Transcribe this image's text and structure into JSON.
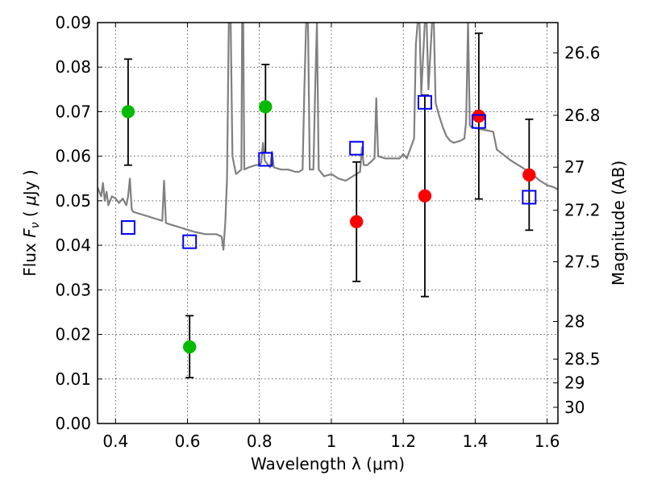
{
  "chart_data": {
    "type": "scatter",
    "xlabel": "Wavelength  λ (μm)",
    "ylabel": "Flux  Fν  ( μJy )",
    "ylabel_parts": [
      "Flux  ",
      "F",
      "ν",
      "  ( ",
      "μ",
      "Jy )"
    ],
    "y2label": "Magnitude (AB)",
    "xlim": [
      0.35,
      1.63
    ],
    "ylim": [
      0.0,
      0.09
    ],
    "grid": true,
    "xticks": [
      0.4,
      0.6,
      0.8,
      1.0,
      1.2,
      1.4,
      1.6
    ],
    "xtick_labels": [
      "0.4",
      "0.6",
      "0.8",
      "1",
      "1.2",
      "1.4",
      "1.6"
    ],
    "yticks": [
      0.0,
      0.01,
      0.02,
      0.03,
      0.04,
      0.05,
      0.06,
      0.07,
      0.08,
      0.09
    ],
    "ytick_labels": [
      "0.00",
      "0.01",
      "0.02",
      "0.03",
      "0.04",
      "0.05",
      "0.06",
      "0.07",
      "0.08",
      "0.09"
    ],
    "y2ticks": [
      {
        "label": "26.6",
        "mag": 26.6
      },
      {
        "label": "26.8",
        "mag": 26.8
      },
      {
        "label": "27",
        "mag": 27.0
      },
      {
        "label": "27.2",
        "mag": 27.2
      },
      {
        "label": "27.5",
        "mag": 27.5
      },
      {
        "label": "28",
        "mag": 28.0
      },
      {
        "label": "28.5",
        "mag": 28.5
      },
      {
        "label": "29",
        "mag": 29.0
      },
      {
        "label": "30",
        "mag": 30.0
      }
    ],
    "series": [
      {
        "name": "model spectrum",
        "kind": "line",
        "color": "#808080",
        "points": [
          [
            0.35,
            0.053
          ],
          [
            0.36,
            0.051
          ],
          [
            0.365,
            0.054
          ],
          [
            0.37,
            0.05
          ],
          [
            0.375,
            0.052
          ],
          [
            0.38,
            0.049
          ],
          [
            0.39,
            0.051
          ],
          [
            0.4,
            0.0505
          ],
          [
            0.41,
            0.0495
          ],
          [
            0.42,
            0.0505
          ],
          [
            0.43,
            0.049
          ],
          [
            0.435,
            0.051
          ],
          [
            0.44,
            0.055
          ],
          [
            0.445,
            0.048
          ],
          [
            0.45,
            0.0475
          ],
          [
            0.47,
            0.047
          ],
          [
            0.49,
            0.0465
          ],
          [
            0.51,
            0.046
          ],
          [
            0.53,
            0.0455
          ],
          [
            0.535,
            0.0545
          ],
          [
            0.54,
            0.045
          ],
          [
            0.56,
            0.0445
          ],
          [
            0.58,
            0.044
          ],
          [
            0.6,
            0.0435
          ],
          [
            0.62,
            0.043
          ],
          [
            0.65,
            0.0425
          ],
          [
            0.68,
            0.0425
          ],
          [
            0.695,
            0.042
          ],
          [
            0.7,
            0.039
          ],
          [
            0.705,
            0.045
          ],
          [
            0.71,
            0.055
          ],
          [
            0.715,
            0.09
          ],
          [
            0.72,
            0.09
          ],
          [
            0.725,
            0.06
          ],
          [
            0.735,
            0.056
          ],
          [
            0.75,
            0.057
          ],
          [
            0.752,
            0.09
          ],
          [
            0.755,
            0.09
          ],
          [
            0.758,
            0.057
          ],
          [
            0.77,
            0.0575
          ],
          [
            0.79,
            0.058
          ],
          [
            0.8,
            0.058
          ],
          [
            0.805,
            0.0585
          ],
          [
            0.81,
            0.063
          ],
          [
            0.815,
            0.059
          ],
          [
            0.83,
            0.0575
          ],
          [
            0.835,
            0.061
          ],
          [
            0.84,
            0.0575
          ],
          [
            0.86,
            0.057
          ],
          [
            0.88,
            0.057
          ],
          [
            0.9,
            0.0565
          ],
          [
            0.91,
            0.0565
          ],
          [
            0.92,
            0.057
          ],
          [
            0.925,
            0.075
          ],
          [
            0.93,
            0.09
          ],
          [
            0.935,
            0.09
          ],
          [
            0.94,
            0.057
          ],
          [
            0.95,
            0.057
          ],
          [
            0.955,
            0.075
          ],
          [
            0.96,
            0.09
          ],
          [
            0.965,
            0.057
          ],
          [
            0.98,
            0.0555
          ],
          [
            1.0,
            0.056
          ],
          [
            1.02,
            0.055
          ],
          [
            1.04,
            0.0545
          ],
          [
            1.06,
            0.0555
          ],
          [
            1.08,
            0.0565
          ],
          [
            1.085,
            0.062
          ],
          [
            1.09,
            0.058
          ],
          [
            1.1,
            0.058
          ],
          [
            1.12,
            0.0595
          ],
          [
            1.125,
            0.073
          ],
          [
            1.13,
            0.06
          ],
          [
            1.15,
            0.0595
          ],
          [
            1.17,
            0.0595
          ],
          [
            1.19,
            0.0595
          ],
          [
            1.2,
            0.0605
          ],
          [
            1.21,
            0.0595
          ],
          [
            1.23,
            0.064
          ],
          [
            1.235,
            0.085
          ],
          [
            1.24,
            0.09
          ],
          [
            1.245,
            0.09
          ],
          [
            1.25,
            0.074
          ],
          [
            1.26,
            0.09
          ],
          [
            1.265,
            0.09
          ],
          [
            1.27,
            0.075
          ],
          [
            1.28,
            0.09
          ],
          [
            1.285,
            0.09
          ],
          [
            1.29,
            0.072
          ],
          [
            1.3,
            0.069
          ],
          [
            1.31,
            0.0665
          ],
          [
            1.32,
            0.0645
          ],
          [
            1.33,
            0.0635
          ],
          [
            1.34,
            0.063
          ],
          [
            1.36,
            0.0635
          ],
          [
            1.37,
            0.064
          ],
          [
            1.375,
            0.068
          ],
          [
            1.38,
            0.09
          ],
          [
            1.385,
            0.067
          ],
          [
            1.39,
            0.0665
          ],
          [
            1.42,
            0.066
          ],
          [
            1.45,
            0.0655
          ],
          [
            1.46,
            0.0615
          ],
          [
            1.5,
            0.059
          ],
          [
            1.55,
            0.0565
          ],
          [
            1.58,
            0.0545
          ],
          [
            1.6,
            0.0535
          ],
          [
            1.62,
            0.053
          ],
          [
            1.63,
            0.0525
          ]
        ]
      },
      {
        "name": "green detections",
        "kind": "points",
        "marker": "circle",
        "color": "#00bb00",
        "x": [
          0.435,
          0.606,
          0.817
        ],
        "y": [
          0.07,
          0.0172,
          0.0711
        ],
        "yerr_low": [
          0.058,
          0.0103,
          0.0608
        ],
        "yerr_high": [
          0.0818,
          0.0242,
          0.0806
        ]
      },
      {
        "name": "red detections",
        "kind": "points",
        "marker": "circle",
        "color": "#ff0000",
        "x": [
          1.07,
          1.26,
          1.41,
          1.55
        ],
        "y": [
          0.0453,
          0.0511,
          0.069,
          0.0558
        ],
        "yerr_low": [
          0.0319,
          0.0285,
          0.0504,
          0.0434
        ],
        "yerr_high": [
          0.0587,
          0.0737,
          0.0876,
          0.0683
        ]
      },
      {
        "name": "model photometry",
        "kind": "points",
        "marker": "square",
        "color": "#0000ff",
        "x": [
          0.435,
          0.606,
          0.817,
          1.07,
          1.26,
          1.41,
          1.55
        ],
        "y": [
          0.044,
          0.0408,
          0.0593,
          0.0618,
          0.0721,
          0.0678,
          0.0508
        ]
      }
    ]
  }
}
